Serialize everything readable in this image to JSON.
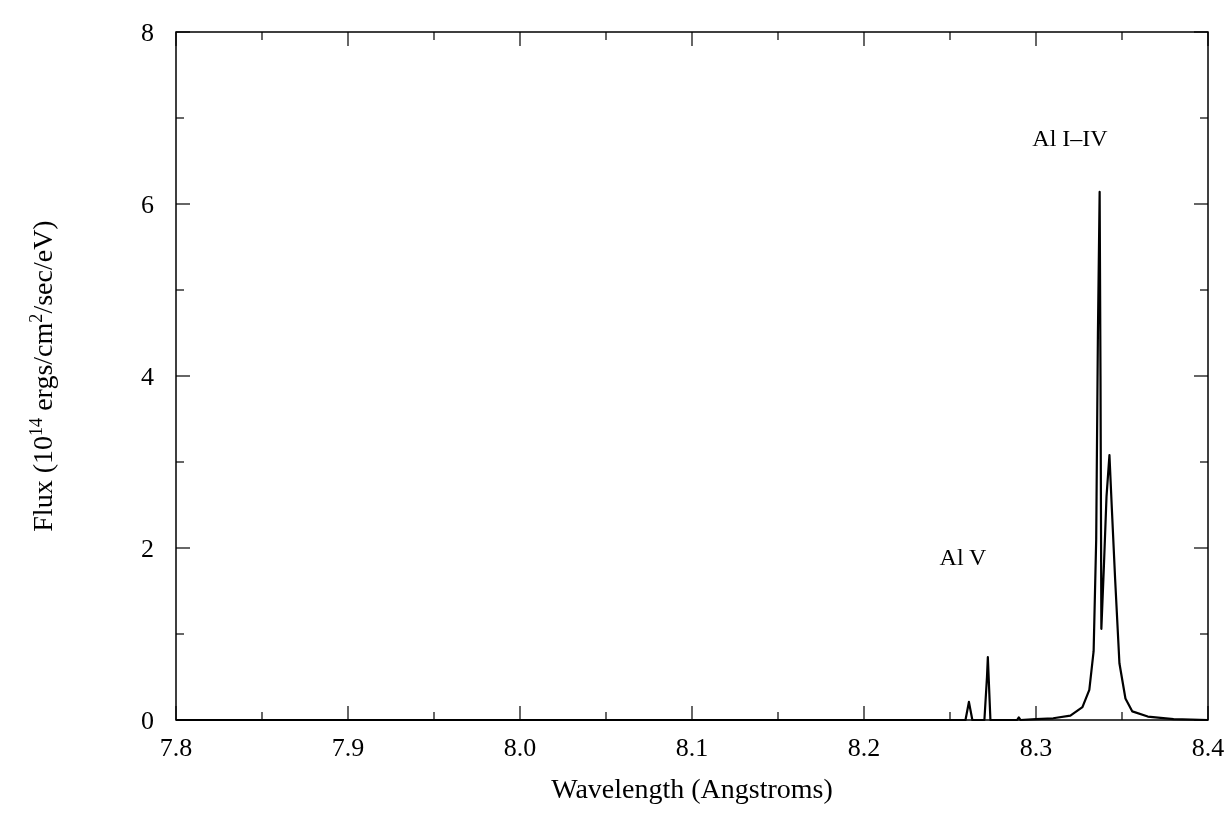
{
  "chart_data": {
    "type": "line",
    "xlabel": "Wavelength (Angstroms)",
    "ylabel": "Flux (10$^{14}$ ergs/cm$^{2}$/sec/eV)",
    "xlim": [
      7.8,
      8.4
    ],
    "ylim": [
      0,
      8
    ],
    "xticks": [
      7.8,
      {
        "value": 7.85,
        "label": null
      },
      7.9,
      {
        "value": 7.95,
        "label": null
      },
      "8.0",
      {
        "value": 8.05,
        "label": null
      },
      8.1,
      {
        "value": 8.15,
        "label": null
      },
      8.2,
      {
        "value": 8.25,
        "label": null
      },
      8.3,
      {
        "value": 8.35,
        "label": null
      },
      8.4
    ],
    "yticks": [
      0,
      {
        "value": 1,
        "label": null
      },
      2,
      {
        "value": 3,
        "label": null
      },
      4,
      {
        "value": 5,
        "label": null
      },
      6,
      {
        "value": 7,
        "label": null
      },
      8
    ],
    "grid": false,
    "marker": "none",
    "line_style": "solid",
    "annotations": [
      "Al V",
      "Al I–IV"
    ],
    "series": [
      {
        "color": "#000000",
        "x": [
          7.8,
          8.25,
          8.259,
          8.261,
          8.263,
          8.27,
          8.2715,
          8.272,
          8.2735,
          8.289,
          8.29,
          8.291,
          8.3,
          8.31,
          8.32,
          8.327,
          8.331,
          8.3335,
          8.335,
          8.336,
          8.337,
          8.3375,
          8.338,
          8.3395,
          8.341,
          8.3427,
          8.344,
          8.346,
          8.3485,
          8.352,
          8.356,
          8.365,
          8.38,
          8.4
        ],
        "values": [
          0,
          0,
          0,
          0.21,
          0,
          0,
          0.5,
          0.73,
          0,
          0,
          0.03,
          0,
          0.01,
          0.02,
          0.05,
          0.15,
          0.35,
          0.8,
          2.1,
          4.5,
          6.14,
          4.0,
          1.06,
          1.8,
          2.6,
          3.08,
          2.5,
          1.64,
          0.66,
          0.25,
          0.1,
          0.04,
          0.01,
          0
        ]
      }
    ]
  }
}
